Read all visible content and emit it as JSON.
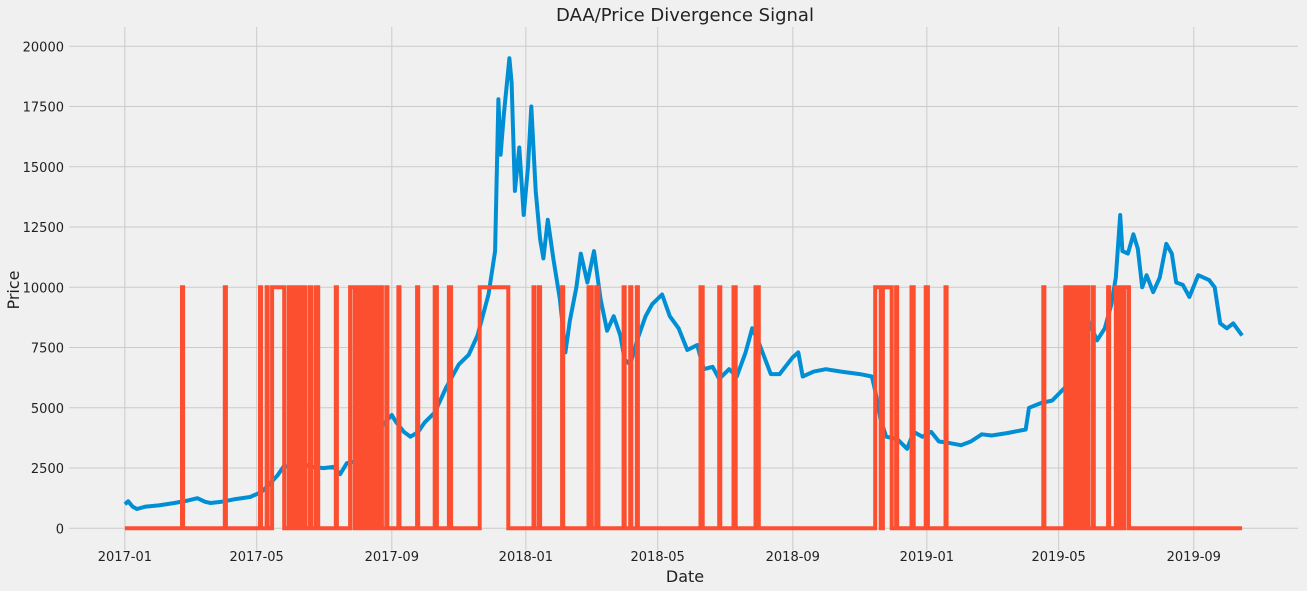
{
  "chart_data": {
    "type": "line",
    "title": "DAA/Price Divergence Signal",
    "xlabel": "Date",
    "ylabel": "Price",
    "x_range": [
      "2017-01-01",
      "2019-10-15"
    ],
    "ylim": [
      -900,
      20800
    ],
    "x_ticks": [
      "2017-01",
      "2017-05",
      "2017-09",
      "2018-01",
      "2018-05",
      "2018-09",
      "2019-01",
      "2019-05",
      "2019-09"
    ],
    "y_ticks": [
      0,
      2500,
      5000,
      7500,
      10000,
      12500,
      15000,
      17500,
      20000
    ],
    "grid": true,
    "legend": "none",
    "series": [
      {
        "color": "#008fd5",
        "points": [
          [
            "2017-01-01",
            1000
          ],
          [
            "2017-01-04",
            1120
          ],
          [
            "2017-01-08",
            900
          ],
          [
            "2017-01-12",
            800
          ],
          [
            "2017-01-20",
            900
          ],
          [
            "2017-02-01",
            950
          ],
          [
            "2017-02-15",
            1050
          ],
          [
            "2017-02-27",
            1150
          ],
          [
            "2017-03-08",
            1250
          ],
          [
            "2017-03-15",
            1100
          ],
          [
            "2017-03-20",
            1050
          ],
          [
            "2017-03-30",
            1100
          ],
          [
            "2017-04-10",
            1200
          ],
          [
            "2017-04-25",
            1300
          ],
          [
            "2017-05-05",
            1500
          ],
          [
            "2017-05-12",
            1800
          ],
          [
            "2017-05-20",
            2200
          ],
          [
            "2017-05-26",
            2600
          ],
          [
            "2017-06-01",
            2500
          ],
          [
            "2017-06-10",
            2700
          ],
          [
            "2017-06-20",
            2550
          ],
          [
            "2017-07-01",
            2500
          ],
          [
            "2017-07-10",
            2550
          ],
          [
            "2017-07-16",
            2250
          ],
          [
            "2017-07-22",
            2700
          ],
          [
            "2017-08-01",
            2800
          ],
          [
            "2017-08-10",
            3300
          ],
          [
            "2017-08-16",
            3900
          ],
          [
            "2017-08-22",
            4200
          ],
          [
            "2017-09-01",
            4700
          ],
          [
            "2017-09-05",
            4400
          ],
          [
            "2017-09-12",
            4000
          ],
          [
            "2017-09-18",
            3800
          ],
          [
            "2017-09-25",
            4000
          ],
          [
            "2017-10-01",
            4400
          ],
          [
            "2017-10-10",
            4800
          ],
          [
            "2017-10-20",
            5800
          ],
          [
            "2017-11-01",
            6800
          ],
          [
            "2017-11-10",
            7200
          ],
          [
            "2017-11-18",
            8000
          ],
          [
            "2017-11-28",
            9700
          ],
          [
            "2017-12-04",
            11500
          ],
          [
            "2017-12-07",
            17800
          ],
          [
            "2017-12-09",
            15500
          ],
          [
            "2017-12-12",
            17200
          ],
          [
            "2017-12-17",
            19500
          ],
          [
            "2017-12-19",
            18500
          ],
          [
            "2017-12-22",
            14000
          ],
          [
            "2017-12-26",
            15800
          ],
          [
            "2017-12-30",
            13000
          ],
          [
            "2018-01-03",
            15000
          ],
          [
            "2018-01-06",
            17500
          ],
          [
            "2018-01-10",
            14000
          ],
          [
            "2018-01-14",
            12000
          ],
          [
            "2018-01-17",
            11200
          ],
          [
            "2018-01-21",
            12800
          ],
          [
            "2018-01-26",
            11200
          ],
          [
            "2018-02-01",
            9500
          ],
          [
            "2018-02-06",
            7300
          ],
          [
            "2018-02-10",
            8600
          ],
          [
            "2018-02-16",
            10000
          ],
          [
            "2018-02-20",
            11400
          ],
          [
            "2018-02-26",
            10200
          ],
          [
            "2018-03-04",
            11500
          ],
          [
            "2018-03-10",
            9500
          ],
          [
            "2018-03-16",
            8200
          ],
          [
            "2018-03-22",
            8800
          ],
          [
            "2018-03-28",
            8000
          ],
          [
            "2018-04-01",
            7000
          ],
          [
            "2018-04-06",
            6800
          ],
          [
            "2018-04-13",
            7900
          ],
          [
            "2018-04-20",
            8800
          ],
          [
            "2018-04-26",
            9300
          ],
          [
            "2018-05-05",
            9700
          ],
          [
            "2018-05-12",
            8800
          ],
          [
            "2018-05-20",
            8300
          ],
          [
            "2018-05-28",
            7400
          ],
          [
            "2018-06-06",
            7600
          ],
          [
            "2018-06-12",
            6600
          ],
          [
            "2018-06-20",
            6700
          ],
          [
            "2018-06-26",
            6200
          ],
          [
            "2018-07-05",
            6600
          ],
          [
            "2018-07-12",
            6300
          ],
          [
            "2018-07-20",
            7300
          ],
          [
            "2018-07-26",
            8300
          ],
          [
            "2018-08-01",
            7700
          ],
          [
            "2018-08-07",
            7000
          ],
          [
            "2018-08-12",
            6400
          ],
          [
            "2018-08-20",
            6400
          ],
          [
            "2018-09-01",
            7100
          ],
          [
            "2018-09-06",
            7300
          ],
          [
            "2018-09-10",
            6300
          ],
          [
            "2018-09-20",
            6500
          ],
          [
            "2018-10-01",
            6600
          ],
          [
            "2018-10-15",
            6500
          ],
          [
            "2018-11-01",
            6400
          ],
          [
            "2018-11-12",
            6300
          ],
          [
            "2018-11-15",
            5700
          ],
          [
            "2018-11-20",
            4500
          ],
          [
            "2018-11-25",
            3800
          ],
          [
            "2018-12-05",
            3700
          ],
          [
            "2018-12-14",
            3300
          ],
          [
            "2018-12-20",
            4000
          ],
          [
            "2018-12-28",
            3800
          ],
          [
            "2019-01-05",
            4000
          ],
          [
            "2019-01-12",
            3600
          ],
          [
            "2019-01-20",
            3550
          ],
          [
            "2019-02-01",
            3450
          ],
          [
            "2019-02-10",
            3600
          ],
          [
            "2019-02-20",
            3900
          ],
          [
            "2019-03-01",
            3850
          ],
          [
            "2019-03-15",
            3950
          ],
          [
            "2019-04-01",
            4100
          ],
          [
            "2019-04-04",
            5000
          ],
          [
            "2019-04-15",
            5200
          ],
          [
            "2019-04-25",
            5300
          ],
          [
            "2019-05-08",
            5900
          ],
          [
            "2019-05-13",
            7500
          ],
          [
            "2019-05-20",
            8000
          ],
          [
            "2019-05-28",
            8600
          ],
          [
            "2019-06-05",
            7800
          ],
          [
            "2019-06-12",
            8300
          ],
          [
            "2019-06-18",
            9300
          ],
          [
            "2019-06-22",
            10400
          ],
          [
            "2019-06-26",
            13000
          ],
          [
            "2019-06-28",
            11500
          ],
          [
            "2019-07-03",
            11400
          ],
          [
            "2019-07-08",
            12200
          ],
          [
            "2019-07-12",
            11600
          ],
          [
            "2019-07-16",
            10000
          ],
          [
            "2019-07-20",
            10500
          ],
          [
            "2019-07-26",
            9800
          ],
          [
            "2019-08-01",
            10400
          ],
          [
            "2019-08-07",
            11800
          ],
          [
            "2019-08-12",
            11400
          ],
          [
            "2019-08-16",
            10200
          ],
          [
            "2019-08-22",
            10100
          ],
          [
            "2019-08-28",
            9600
          ],
          [
            "2019-09-05",
            10500
          ],
          [
            "2019-09-15",
            10300
          ],
          [
            "2019-09-20",
            10000
          ],
          [
            "2019-09-25",
            8500
          ],
          [
            "2019-10-01",
            8300
          ],
          [
            "2019-10-07",
            8500
          ],
          [
            "2019-10-15",
            8000
          ]
        ]
      },
      {
        "color": "#fc4f30",
        "signal_value": 10000,
        "signal_on_ranges": [
          [
            "2017-02-22",
            "2017-02-23"
          ],
          [
            "2017-04-02",
            "2017-04-03"
          ],
          [
            "2017-05-04",
            "2017-05-05"
          ],
          [
            "2017-05-10",
            "2017-05-11"
          ],
          [
            "2017-05-15",
            "2017-05-26"
          ],
          [
            "2017-05-30",
            "2017-06-01"
          ],
          [
            "2017-06-03",
            "2017-06-05"
          ],
          [
            "2017-06-07",
            "2017-06-09"
          ],
          [
            "2017-06-12",
            "2017-06-14"
          ],
          [
            "2017-06-18",
            "2017-06-20"
          ],
          [
            "2017-06-24",
            "2017-06-26"
          ],
          [
            "2017-07-12",
            "2017-07-13"
          ],
          [
            "2017-07-25",
            "2017-07-29"
          ],
          [
            "2017-07-31",
            "2017-08-03"
          ],
          [
            "2017-08-05",
            "2017-08-08"
          ],
          [
            "2017-08-10",
            "2017-08-12"
          ],
          [
            "2017-08-15",
            "2017-08-18"
          ],
          [
            "2017-08-20",
            "2017-08-23"
          ],
          [
            "2017-08-27",
            "2017-08-28"
          ],
          [
            "2017-09-07",
            "2017-09-08"
          ],
          [
            "2017-09-24",
            "2017-09-25"
          ],
          [
            "2017-10-10",
            "2017-10-12"
          ],
          [
            "2017-10-23",
            "2017-10-25"
          ],
          [
            "2017-11-20",
            "2017-12-16"
          ],
          [
            "2018-01-08",
            "2018-01-09"
          ],
          [
            "2018-01-13",
            "2018-01-14"
          ],
          [
            "2018-02-03",
            "2018-02-04"
          ],
          [
            "2018-02-27",
            "2018-03-02"
          ],
          [
            "2018-03-06",
            "2018-03-08"
          ],
          [
            "2018-03-31",
            "2018-04-01"
          ],
          [
            "2018-04-06",
            "2018-04-07"
          ],
          [
            "2018-04-12",
            "2018-04-13"
          ],
          [
            "2018-06-09",
            "2018-06-11"
          ],
          [
            "2018-06-26",
            "2018-06-27"
          ],
          [
            "2018-07-09",
            "2018-07-11"
          ],
          [
            "2018-07-29",
            "2018-08-01"
          ],
          [
            "2018-11-15",
            "2018-11-20"
          ],
          [
            "2018-11-22",
            "2018-11-30"
          ],
          [
            "2018-12-04",
            "2018-12-05"
          ],
          [
            "2018-12-18",
            "2018-12-20"
          ],
          [
            "2018-12-31",
            "2019-01-02"
          ],
          [
            "2019-01-18",
            "2019-01-19"
          ],
          [
            "2019-04-17",
            "2019-04-18"
          ],
          [
            "2019-05-07",
            "2019-05-08"
          ],
          [
            "2019-05-11",
            "2019-05-13"
          ],
          [
            "2019-05-15",
            "2019-05-17"
          ],
          [
            "2019-05-19",
            "2019-05-21"
          ],
          [
            "2019-05-23",
            "2019-05-25"
          ],
          [
            "2019-05-27",
            "2019-05-28"
          ],
          [
            "2019-06-01",
            "2019-06-02"
          ],
          [
            "2019-06-15",
            "2019-06-16"
          ],
          [
            "2019-06-22",
            "2019-06-24"
          ],
          [
            "2019-06-26",
            "2019-06-28"
          ],
          [
            "2019-06-30",
            "2019-07-04"
          ]
        ]
      }
    ]
  }
}
